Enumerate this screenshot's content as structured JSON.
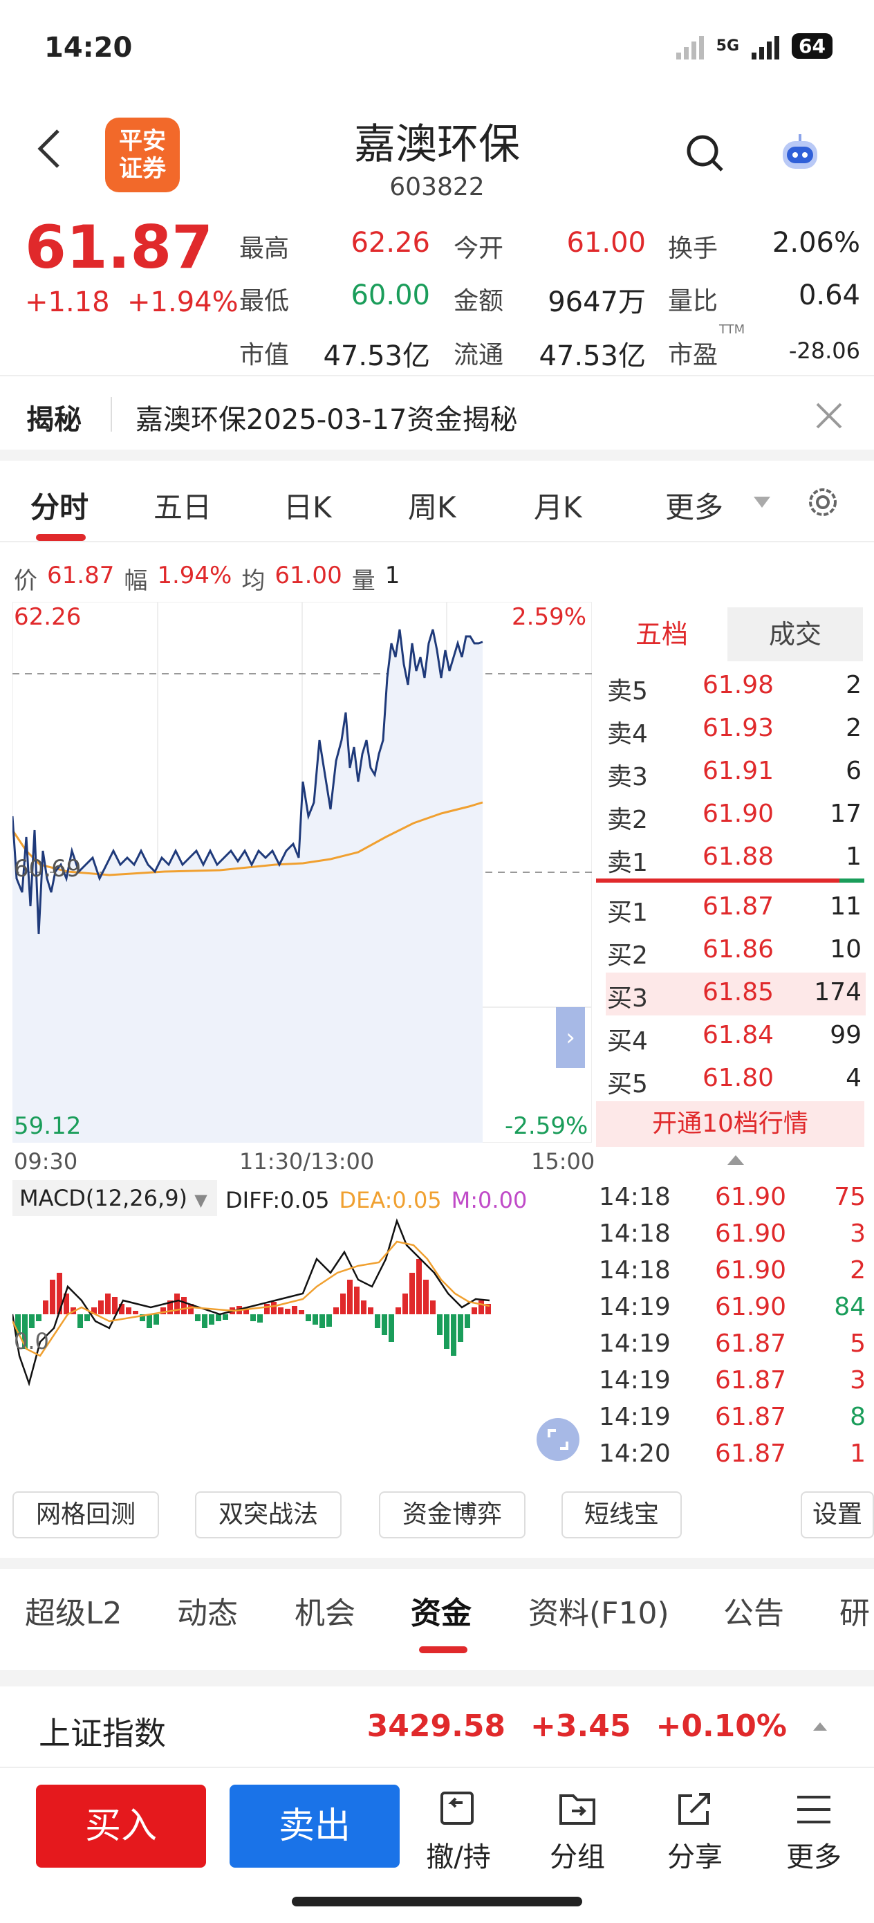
{
  "status_bar": {
    "time": "14:20",
    "network": "5G",
    "battery": "64"
  },
  "header": {
    "stock_name": "嘉澳环保",
    "stock_code": "603822",
    "logo_text_1": "平安",
    "logo_text_2": "证券"
  },
  "quote": {
    "price": "61.87",
    "change": "+1.18",
    "change_pct": "+1.94%",
    "fields": [
      {
        "label": "最高",
        "value": "62.26"
      },
      {
        "label": "今开",
        "value": "61.00"
      },
      {
        "label": "换手",
        "value": "2.06%"
      },
      {
        "label": "最低",
        "value": "60.00"
      },
      {
        "label": "金额",
        "value": "9647万"
      },
      {
        "label": "量比",
        "value": "0.64"
      },
      {
        "label": "市值",
        "value": "47.53亿"
      },
      {
        "label": "流通",
        "value": "47.53亿"
      },
      {
        "label": "市盈",
        "value": "-28.06"
      }
    ],
    "pe_suffix": "TTM"
  },
  "reveal": {
    "title": "揭秘",
    "text": "嘉澳环保2025-03-17资金揭秘"
  },
  "chart_tabs": [
    "分时",
    "五日",
    "日K",
    "周K",
    "月K",
    "更多"
  ],
  "info_line": {
    "price_label": "价",
    "price": "61.87",
    "amp_label": "幅",
    "amp": "1.94%",
    "avg_label": "均",
    "avg": "61.00",
    "vol_label": "量",
    "vol": "1"
  },
  "chart": {
    "high": "62.26",
    "high_pct": "2.59%",
    "mid": "60.69",
    "low": "59.12",
    "low_pct": "-2.59%",
    "time_start": "09:30",
    "time_mid": "11:30/13:00",
    "time_end": "15:00"
  },
  "macd": {
    "label": "MACD(12,26,9)",
    "diff": "DIFF:0.05",
    "dea": "DEA:0.05",
    "m": "M:0.00",
    "zero": "0.0"
  },
  "order_book": {
    "tab_five": "五档",
    "tab_trade": "成交",
    "sells": [
      {
        "label": "卖5",
        "price": "61.98",
        "vol": "2"
      },
      {
        "label": "卖4",
        "price": "61.93",
        "vol": "2"
      },
      {
        "label": "卖3",
        "price": "61.91",
        "vol": "6"
      },
      {
        "label": "卖2",
        "price": "61.90",
        "vol": "17"
      },
      {
        "label": "卖1",
        "price": "61.88",
        "vol": "1"
      }
    ],
    "buys": [
      {
        "label": "买1",
        "price": "61.87",
        "vol": "11"
      },
      {
        "label": "买2",
        "price": "61.86",
        "vol": "10"
      },
      {
        "label": "买3",
        "price": "61.85",
        "vol": "174"
      },
      {
        "label": "买4",
        "price": "61.84",
        "vol": "99"
      },
      {
        "label": "买5",
        "price": "61.80",
        "vol": "4"
      }
    ],
    "open_ten": "开通10档行情"
  },
  "ticks": [
    {
      "time": "14:18",
      "price": "61.90",
      "vol": "75"
    },
    {
      "time": "14:18",
      "price": "61.90",
      "vol": "3"
    },
    {
      "time": "14:18",
      "price": "61.90",
      "vol": "2"
    },
    {
      "time": "14:19",
      "price": "61.90",
      "vol": "84"
    },
    {
      "time": "14:19",
      "price": "61.87",
      "vol": "5"
    },
    {
      "time": "14:19",
      "price": "61.87",
      "vol": "3"
    },
    {
      "time": "14:19",
      "price": "61.87",
      "vol": "8"
    },
    {
      "time": "14:20",
      "price": "61.87",
      "vol": "1"
    }
  ],
  "tools": [
    "网格回测",
    "双突战法",
    "资金博弈",
    "短线宝",
    "设置"
  ],
  "section_tabs": [
    "超级L2",
    "动态",
    "机会",
    "资金",
    "资料(F10)",
    "公告",
    "研"
  ],
  "index_bar": {
    "name": "上证指数",
    "value": "3429.58",
    "change": "+3.45",
    "pct": "+0.10%"
  },
  "bottom_bar": {
    "buy": "买入",
    "sell": "卖出",
    "items": [
      "撤/持",
      "分组",
      "分享",
      "更多"
    ]
  },
  "colors": {
    "up": "#e0292b",
    "down": "#1a9d5a",
    "price_line": "#1f3a7a",
    "avg_line": "#f0a030",
    "buy_btn": "#e5191d",
    "sell_btn": "#1a73e8"
  }
}
